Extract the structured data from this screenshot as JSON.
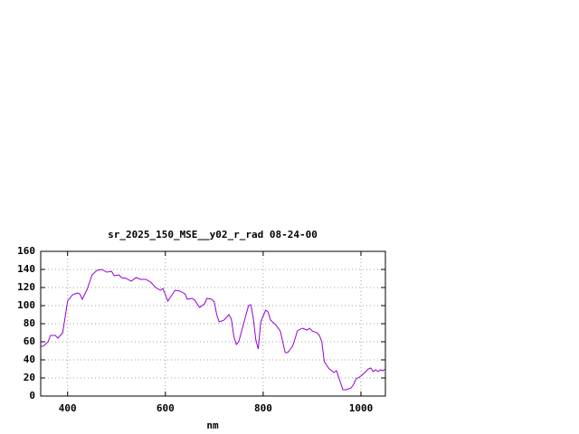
{
  "chart_data": {
    "type": "line",
    "title": "sr_2025_150_MSE__y02_r_rad 08-24-00",
    "xlabel": "nm",
    "x": [
      345,
      350,
      360,
      365,
      375,
      380,
      390,
      400,
      410,
      420,
      425,
      430,
      440,
      450,
      460,
      470,
      480,
      490,
      495,
      505,
      510,
      520,
      530,
      540,
      550,
      560,
      570,
      580,
      590,
      595,
      605,
      610,
      620,
      630,
      640,
      645,
      655,
      660,
      670,
      680,
      685,
      695,
      700,
      705,
      710,
      720,
      730,
      735,
      740,
      745,
      750,
      760,
      770,
      775,
      780,
      785,
      790,
      795,
      805,
      810,
      815,
      825,
      835,
      840,
      845,
      850,
      860,
      865,
      870,
      880,
      890,
      895,
      900,
      910,
      915,
      920,
      925,
      935,
      945,
      950,
      955,
      960,
      963,
      970,
      980,
      985,
      990,
      1000,
      1010,
      1015,
      1020,
      1025,
      1030,
      1035,
      1040,
      1045,
      1050
    ],
    "series": [
      {
        "name": "sr_2025_150_MSE__y02_r_rad",
        "color": "#9400d3",
        "values": [
          55,
          55,
          60,
          67,
          67,
          64,
          70,
          105,
          112,
          114,
          113,
          107,
          118,
          134,
          139,
          140,
          137,
          138,
          133,
          134,
          131,
          130,
          127,
          131,
          129,
          129,
          126,
          120,
          117,
          119,
          105,
          109,
          117,
          116,
          113,
          107,
          108,
          106,
          98,
          102,
          108,
          107,
          104,
          90,
          82,
          84,
          90,
          85,
          66,
          57,
          60,
          80,
          100,
          101,
          85,
          62,
          52,
          82,
          95,
          93,
          84,
          79,
          72,
          60,
          48,
          48,
          55,
          63,
          72,
          75,
          73,
          75,
          72,
          70,
          67,
          60,
          38,
          30,
          26,
          28,
          20,
          12,
          7,
          7,
          9,
          13,
          19,
          22,
          27,
          30,
          31,
          27,
          29,
          27,
          29,
          28,
          30
        ]
      }
    ],
    "xlim": [
      345,
      1050
    ],
    "xticks": [
      400,
      600,
      800,
      1000
    ],
    "ylim": [
      0,
      160
    ],
    "yticks": [
      0,
      20,
      40,
      60,
      80,
      100,
      120,
      140,
      160
    ],
    "grid": true
  }
}
